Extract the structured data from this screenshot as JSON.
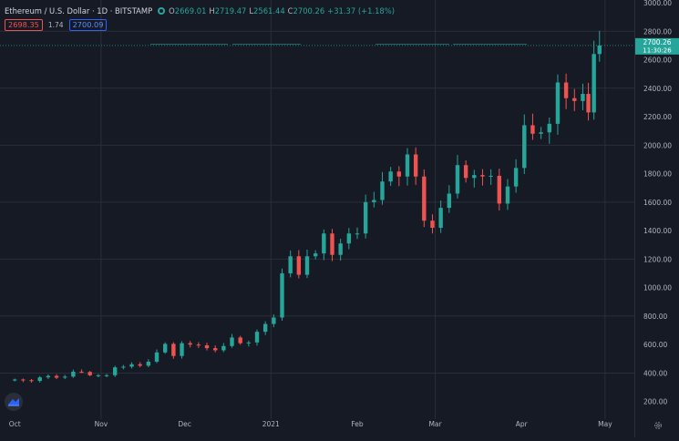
{
  "legend": {
    "symbol": "Ethereum / U.S. Dollar · 1D · BITSTAMP",
    "open_label": "O",
    "open": "2669.01",
    "high_label": "H",
    "high": "2719.47",
    "low_label": "L",
    "low": "2561.44",
    "close_label": "C",
    "close": "2700.26",
    "change": "+31.37 (+1.18%)"
  },
  "bidask": {
    "bid": "2698.35",
    "spread": "1.74",
    "ask": "2700.09"
  },
  "price_badge": {
    "price": "2700.26",
    "countdown": "11:30:26"
  },
  "colors": {
    "up": "#26a69a",
    "down": "#ef5350",
    "background": "#161a25",
    "grid": "#2a2e39"
  },
  "chart_data": {
    "type": "candlestick",
    "title": "Ethereum / U.S. Dollar · 1D · BITSTAMP",
    "yticks": [
      "200.00",
      "400.00",
      "600.00",
      "800.00",
      "1000.00",
      "1200.00",
      "1400.00",
      "1600.00",
      "1800.00",
      "2000.00",
      "2200.00",
      "2400.00",
      "2600.00",
      "2800.00",
      "3000.00"
    ],
    "ylim": [
      0,
      3000
    ],
    "xticks": [
      "Oct",
      "Nov",
      "Dec",
      "2021",
      "Feb",
      "Mar",
      "Apr",
      "May"
    ],
    "xlim": [
      "2020-09-27",
      "2021-05-03"
    ],
    "grid": true,
    "last_price": 2700.26,
    "series": [
      {
        "x": "2020-10-01",
        "y": 355
      },
      {
        "x": "2020-10-04",
        "y": 350
      },
      {
        "x": "2020-10-07",
        "y": 345
      },
      {
        "x": "2020-10-10",
        "y": 370
      },
      {
        "x": "2020-10-13",
        "y": 380
      },
      {
        "x": "2020-10-16",
        "y": 368
      },
      {
        "x": "2020-10-19",
        "y": 375
      },
      {
        "x": "2020-10-22",
        "y": 410
      },
      {
        "x": "2020-10-25",
        "y": 408
      },
      {
        "x": "2020-10-28",
        "y": 385
      },
      {
        "x": "2020-10-31",
        "y": 385
      },
      {
        "x": "2020-11-03",
        "y": 385
      },
      {
        "x": "2020-11-06",
        "y": 440
      },
      {
        "x": "2020-11-09",
        "y": 445
      },
      {
        "x": "2020-11-12",
        "y": 462
      },
      {
        "x": "2020-11-15",
        "y": 452
      },
      {
        "x": "2020-11-18",
        "y": 480
      },
      {
        "x": "2020-11-21",
        "y": 545
      },
      {
        "x": "2020-11-24",
        "y": 605
      },
      {
        "x": "2020-11-27",
        "y": 520
      },
      {
        "x": "2020-11-30",
        "y": 610
      },
      {
        "x": "2020-12-03",
        "y": 600
      },
      {
        "x": "2020-12-06",
        "y": 595
      },
      {
        "x": "2020-12-09",
        "y": 575
      },
      {
        "x": "2020-12-12",
        "y": 560
      },
      {
        "x": "2020-12-15",
        "y": 590
      },
      {
        "x": "2020-12-18",
        "y": 650
      },
      {
        "x": "2020-12-21",
        "y": 610
      },
      {
        "x": "2020-12-24",
        "y": 615
      },
      {
        "x": "2020-12-27",
        "y": 690
      },
      {
        "x": "2020-12-30",
        "y": 745
      },
      {
        "x": "2021-01-02",
        "y": 790
      },
      {
        "x": "2021-01-05",
        "y": 1100
      },
      {
        "x": "2021-01-08",
        "y": 1220
      },
      {
        "x": "2021-01-11",
        "y": 1090
      },
      {
        "x": "2021-01-14",
        "y": 1220
      },
      {
        "x": "2021-01-17",
        "y": 1240
      },
      {
        "x": "2021-01-20",
        "y": 1380
      },
      {
        "x": "2021-01-23",
        "y": 1230
      },
      {
        "x": "2021-01-26",
        "y": 1310
      },
      {
        "x": "2021-01-29",
        "y": 1380
      },
      {
        "x": "2021-02-01",
        "y": 1380
      },
      {
        "x": "2021-02-04",
        "y": 1600
      },
      {
        "x": "2021-02-07",
        "y": 1615
      },
      {
        "x": "2021-02-10",
        "y": 1745
      },
      {
        "x": "2021-02-13",
        "y": 1815
      },
      {
        "x": "2021-02-16",
        "y": 1780
      },
      {
        "x": "2021-02-19",
        "y": 1935
      },
      {
        "x": "2021-02-22",
        "y": 1780
      },
      {
        "x": "2021-02-25",
        "y": 1470
      },
      {
        "x": "2021-02-28",
        "y": 1420
      },
      {
        "x": "2021-03-03",
        "y": 1560
      },
      {
        "x": "2021-03-06",
        "y": 1660
      },
      {
        "x": "2021-03-09",
        "y": 1860
      },
      {
        "x": "2021-03-12",
        "y": 1770
      },
      {
        "x": "2021-03-15",
        "y": 1790
      },
      {
        "x": "2021-03-18",
        "y": 1780
      },
      {
        "x": "2021-03-21",
        "y": 1785
      },
      {
        "x": "2021-03-24",
        "y": 1590
      },
      {
        "x": "2021-03-27",
        "y": 1710
      },
      {
        "x": "2021-03-30",
        "y": 1840
      },
      {
        "x": "2021-04-02",
        "y": 2140
      },
      {
        "x": "2021-04-05",
        "y": 2080
      },
      {
        "x": "2021-04-08",
        "y": 2090
      },
      {
        "x": "2021-04-11",
        "y": 2150
      },
      {
        "x": "2021-04-14",
        "y": 2440
      },
      {
        "x": "2021-04-17",
        "y": 2330
      },
      {
        "x": "2021-04-20",
        "y": 2310
      },
      {
        "x": "2021-04-23",
        "y": 2360
      },
      {
        "x": "2021-04-25",
        "y": 2230
      },
      {
        "x": "2021-04-27",
        "y": 2640
      },
      {
        "x": "2021-04-29",
        "y": 2700
      }
    ]
  }
}
